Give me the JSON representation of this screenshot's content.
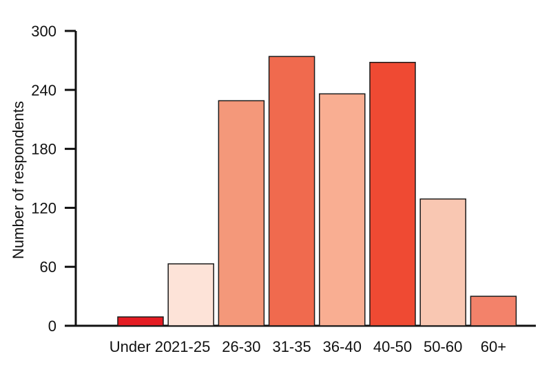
{
  "chart_data": {
    "type": "bar",
    "title": "",
    "xlabel": "",
    "ylabel": "Number of respondents",
    "categories": [
      "Under 20",
      "21-25",
      "26-30",
      "31-35",
      "36-40",
      "40-50",
      "50-60",
      "60+"
    ],
    "values": [
      9,
      63,
      229,
      274,
      236,
      268,
      129,
      30
    ],
    "ylim": [
      0,
      300
    ],
    "yticks": [
      0,
      60,
      120,
      180,
      240,
      300
    ],
    "ytick_labels": [
      "0",
      "60",
      "120",
      "180",
      "240",
      "300"
    ],
    "grid": false,
    "legend": "none",
    "bar_colors": [
      "#e41c23",
      "#fde3d8",
      "#f4987a",
      "#f06a4e",
      "#f9ae92",
      "#ef4a33",
      "#f9c7b2",
      "#f3826a"
    ],
    "bar_edge_color": "#1a1a1a",
    "axis_color": "#111111"
  }
}
